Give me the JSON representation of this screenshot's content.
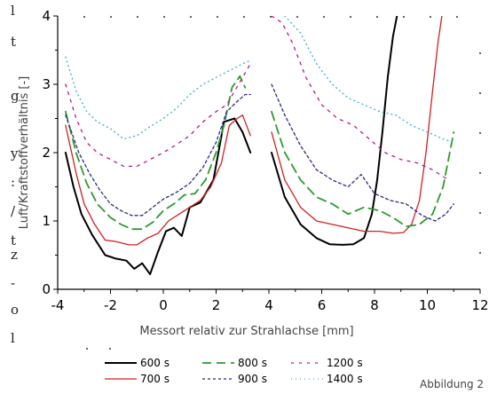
{
  "left_margin_text": [
    "l",
    "t",
    "g",
    "y",
    ":",
    "/",
    "t",
    "z",
    "-",
    "o",
    "l"
  ],
  "caption": "Abbildung 2",
  "chart_data": {
    "type": "line",
    "title": "",
    "xlabel": "Messort relativ zur Strahlachse [mm]",
    "ylabel": "Luft/Kraftstoffverhältnis [-]",
    "xlim": [
      -4,
      12
    ],
    "ylim": [
      0,
      4
    ],
    "xticks": [
      -4,
      -2,
      0,
      2,
      4,
      6,
      8,
      10,
      12
    ],
    "yticks": [
      0,
      1,
      2,
      3,
      4
    ],
    "xtick_labels": [
      "-4",
      "-2",
      "0",
      "2",
      "4",
      "6",
      "8",
      "10",
      "12"
    ],
    "ytick_labels": [
      "0",
      "1",
      "2",
      "3",
      "4"
    ],
    "grid": false,
    "legend_position": "bottom",
    "series": [
      {
        "name": "600 s",
        "color": "#000000",
        "dash": "solid",
        "segments": [
          [
            [
              -3.7,
              2.0
            ],
            [
              -3.4,
              1.5
            ],
            [
              -3.1,
              1.1
            ],
            [
              -2.7,
              0.8
            ],
            [
              -2.2,
              0.5
            ],
            [
              -1.8,
              0.45
            ],
            [
              -1.4,
              0.42
            ],
            [
              -1.1,
              0.3
            ],
            [
              -0.8,
              0.38
            ],
            [
              -0.5,
              0.22
            ],
            [
              -0.2,
              0.55
            ],
            [
              0.1,
              0.85
            ],
            [
              0.4,
              0.9
            ],
            [
              0.7,
              0.78
            ],
            [
              1.0,
              1.2
            ],
            [
              1.4,
              1.27
            ],
            [
              1.9,
              1.6
            ],
            [
              2.3,
              2.45
            ],
            [
              2.7,
              2.5
            ],
            [
              3.0,
              2.3
            ],
            [
              3.3,
              2.0
            ]
          ],
          [
            [
              4.1,
              2.0
            ],
            [
              4.6,
              1.35
            ],
            [
              5.2,
              0.95
            ],
            [
              5.8,
              0.75
            ],
            [
              6.3,
              0.66
            ],
            [
              6.8,
              0.65
            ],
            [
              7.2,
              0.66
            ],
            [
              7.6,
              0.75
            ],
            [
              7.9,
              1.1
            ],
            [
              8.1,
              1.6
            ],
            [
              8.3,
              2.3
            ],
            [
              8.5,
              3.1
            ],
            [
              8.7,
              3.7
            ],
            [
              8.85,
              4.0
            ]
          ]
        ]
      },
      {
        "name": "700 s",
        "color": "#d42020",
        "dash": "solid",
        "segments": [
          [
            [
              -3.7,
              2.4
            ],
            [
              -3.3,
              1.7
            ],
            [
              -3.0,
              1.25
            ],
            [
              -2.6,
              0.95
            ],
            [
              -2.2,
              0.72
            ],
            [
              -1.8,
              0.7
            ],
            [
              -1.3,
              0.65
            ],
            [
              -1.0,
              0.65
            ],
            [
              -0.6,
              0.75
            ],
            [
              -0.2,
              0.82
            ],
            [
              0.2,
              1.0
            ],
            [
              0.6,
              1.1
            ],
            [
              1.0,
              1.2
            ],
            [
              1.4,
              1.3
            ],
            [
              1.8,
              1.5
            ],
            [
              2.2,
              1.85
            ],
            [
              2.5,
              2.4
            ],
            [
              2.8,
              2.5
            ],
            [
              3.0,
              2.55
            ],
            [
              3.3,
              2.25
            ]
          ],
          [
            [
              4.1,
              2.3
            ],
            [
              4.6,
              1.6
            ],
            [
              5.2,
              1.2
            ],
            [
              5.8,
              1.0
            ],
            [
              6.4,
              0.95
            ],
            [
              7.0,
              0.9
            ],
            [
              7.6,
              0.85
            ],
            [
              8.2,
              0.85
            ],
            [
              8.7,
              0.82
            ],
            [
              9.1,
              0.83
            ],
            [
              9.4,
              0.95
            ],
            [
              9.7,
              1.3
            ],
            [
              9.95,
              2.0
            ],
            [
              10.2,
              2.9
            ],
            [
              10.4,
              3.6
            ],
            [
              10.55,
              4.0
            ]
          ]
        ]
      },
      {
        "name": "800 s",
        "color": "#2e9a2e",
        "dash": "10,6",
        "segments": [
          [
            [
              -3.7,
              2.6
            ],
            [
              -3.3,
              2.0
            ],
            [
              -2.9,
              1.55
            ],
            [
              -2.5,
              1.25
            ],
            [
              -2.0,
              1.05
            ],
            [
              -1.6,
              0.95
            ],
            [
              -1.2,
              0.88
            ],
            [
              -0.8,
              0.88
            ],
            [
              -0.4,
              0.98
            ],
            [
              0.0,
              1.15
            ],
            [
              0.4,
              1.25
            ],
            [
              0.8,
              1.38
            ],
            [
              1.2,
              1.4
            ],
            [
              1.6,
              1.6
            ],
            [
              2.0,
              2.0
            ],
            [
              2.3,
              2.4
            ],
            [
              2.6,
              2.95
            ],
            [
              2.9,
              3.12
            ],
            [
              3.1,
              2.95
            ]
          ],
          [
            [
              4.1,
              2.6
            ],
            [
              4.6,
              2.0
            ],
            [
              5.2,
              1.6
            ],
            [
              5.8,
              1.35
            ],
            [
              6.4,
              1.25
            ],
            [
              7.0,
              1.1
            ],
            [
              7.6,
              1.2
            ],
            [
              8.2,
              1.15
            ],
            [
              8.7,
              1.05
            ],
            [
              9.2,
              0.92
            ],
            [
              9.7,
              0.95
            ],
            [
              10.2,
              1.1
            ],
            [
              10.6,
              1.5
            ],
            [
              10.9,
              2.1
            ],
            [
              11.0,
              2.3
            ]
          ]
        ]
      },
      {
        "name": "900 s",
        "color": "#2a2a8c",
        "dash": "3,3",
        "segments": [
          [
            [
              -3.7,
              2.55
            ],
            [
              -3.2,
              2.0
            ],
            [
              -2.8,
              1.7
            ],
            [
              -2.4,
              1.45
            ],
            [
              -2.0,
              1.25
            ],
            [
              -1.6,
              1.15
            ],
            [
              -1.2,
              1.08
            ],
            [
              -0.8,
              1.08
            ],
            [
              -0.4,
              1.2
            ],
            [
              0.0,
              1.32
            ],
            [
              0.5,
              1.42
            ],
            [
              1.0,
              1.55
            ],
            [
              1.5,
              1.78
            ],
            [
              2.0,
              2.15
            ],
            [
              2.4,
              2.6
            ],
            [
              2.8,
              2.75
            ],
            [
              3.1,
              2.85
            ],
            [
              3.3,
              2.85
            ]
          ],
          [
            [
              4.1,
              3.0
            ],
            [
              4.6,
              2.55
            ],
            [
              5.2,
              2.1
            ],
            [
              5.8,
              1.75
            ],
            [
              6.4,
              1.6
            ],
            [
              7.0,
              1.5
            ],
            [
              7.5,
              1.68
            ],
            [
              8.0,
              1.4
            ],
            [
              8.6,
              1.3
            ],
            [
              9.2,
              1.25
            ],
            [
              9.8,
              1.08
            ],
            [
              10.3,
              1.0
            ],
            [
              10.7,
              1.1
            ],
            [
              11.0,
              1.25
            ]
          ]
        ]
      },
      {
        "name": "1200 s",
        "color": "#c0148c",
        "dash": "3,6",
        "segments": [
          [
            [
              -3.7,
              3.0
            ],
            [
              -3.3,
              2.5
            ],
            [
              -2.9,
              2.15
            ],
            [
              -2.5,
              2.0
            ],
            [
              -2.0,
              1.9
            ],
            [
              -1.5,
              1.8
            ],
            [
              -1.0,
              1.8
            ],
            [
              -0.5,
              1.9
            ],
            [
              0.0,
              2.0
            ],
            [
              0.5,
              2.12
            ],
            [
              1.0,
              2.25
            ],
            [
              1.5,
              2.45
            ],
            [
              2.0,
              2.6
            ],
            [
              2.4,
              2.7
            ],
            [
              2.7,
              2.9
            ],
            [
              3.0,
              3.1
            ],
            [
              3.3,
              3.3
            ]
          ],
          [
            [
              4.1,
              4.0
            ],
            [
              4.5,
              3.9
            ],
            [
              4.9,
              3.6
            ],
            [
              5.4,
              3.1
            ],
            [
              6.0,
              2.7
            ],
            [
              6.6,
              2.5
            ],
            [
              7.2,
              2.4
            ],
            [
              7.8,
              2.2
            ],
            [
              8.4,
              2.0
            ],
            [
              9.0,
              1.9
            ],
            [
              9.6,
              1.85
            ],
            [
              10.2,
              1.75
            ],
            [
              10.8,
              1.6
            ]
          ]
        ]
      },
      {
        "name": "1400 s",
        "color": "#40b0d0",
        "dash": "1,4",
        "segments": [
          [
            [
              -3.7,
              3.4
            ],
            [
              -3.3,
              2.9
            ],
            [
              -2.9,
              2.6
            ],
            [
              -2.5,
              2.45
            ],
            [
              -2.0,
              2.35
            ],
            [
              -1.5,
              2.2
            ],
            [
              -1.0,
              2.25
            ],
            [
              -0.5,
              2.38
            ],
            [
              0.0,
              2.5
            ],
            [
              0.5,
              2.65
            ],
            [
              1.0,
              2.85
            ],
            [
              1.5,
              3.0
            ],
            [
              2.0,
              3.1
            ],
            [
              2.5,
              3.2
            ],
            [
              3.0,
              3.3
            ],
            [
              3.3,
              3.35
            ]
          ],
          [
            [
              4.6,
              4.0
            ],
            [
              5.2,
              3.75
            ],
            [
              5.8,
              3.3
            ],
            [
              6.4,
              3.0
            ],
            [
              7.0,
              2.8
            ],
            [
              7.6,
              2.7
            ],
            [
              8.2,
              2.6
            ],
            [
              8.8,
              2.55
            ],
            [
              9.4,
              2.4
            ],
            [
              10.0,
              2.3
            ],
            [
              10.6,
              2.2
            ],
            [
              11.0,
              2.15
            ]
          ]
        ]
      }
    ]
  }
}
